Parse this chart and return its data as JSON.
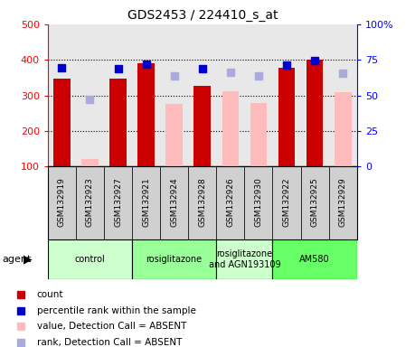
{
  "title": "GDS2453 / 224410_s_at",
  "samples": [
    "GSM132919",
    "GSM132923",
    "GSM132927",
    "GSM132921",
    "GSM132924",
    "GSM132928",
    "GSM132926",
    "GSM132930",
    "GSM132922",
    "GSM132925",
    "GSM132929"
  ],
  "count_values": [
    348,
    null,
    348,
    390,
    null,
    328,
    null,
    null,
    378,
    400,
    null
  ],
  "count_absent": [
    null,
    120,
    null,
    null,
    275,
    null,
    312,
    278,
    null,
    null,
    308
  ],
  "percentile_present": [
    378,
    null,
    376,
    388,
    null,
    376,
    null,
    null,
    386,
    398,
    null
  ],
  "percentile_absent": [
    null,
    288,
    null,
    null,
    355,
    null,
    366,
    355,
    null,
    null,
    362
  ],
  "ylim": [
    100,
    500
  ],
  "y2lim": [
    0,
    100
  ],
  "yticks_left": [
    100,
    200,
    300,
    400,
    500
  ],
  "yticks_right": [
    0,
    25,
    50,
    75,
    100
  ],
  "groups": [
    {
      "label": "control",
      "start": 0,
      "end": 3,
      "color": "#ccffcc"
    },
    {
      "label": "rosiglitazone",
      "start": 3,
      "end": 6,
      "color": "#99ff99"
    },
    {
      "label": "rosiglitazone\nand AGN193109",
      "start": 6,
      "end": 8,
      "color": "#ccffcc"
    },
    {
      "label": "AM580",
      "start": 8,
      "end": 11,
      "color": "#66ff66"
    }
  ],
  "bar_width": 0.6,
  "count_color": "#cc0000",
  "absent_color": "#ffbbbb",
  "percentile_color": "#0000cc",
  "percentile_absent_color": "#aaaadd",
  "plot_bg": "#e8e8e8",
  "label_bg": "#d0d0d0"
}
